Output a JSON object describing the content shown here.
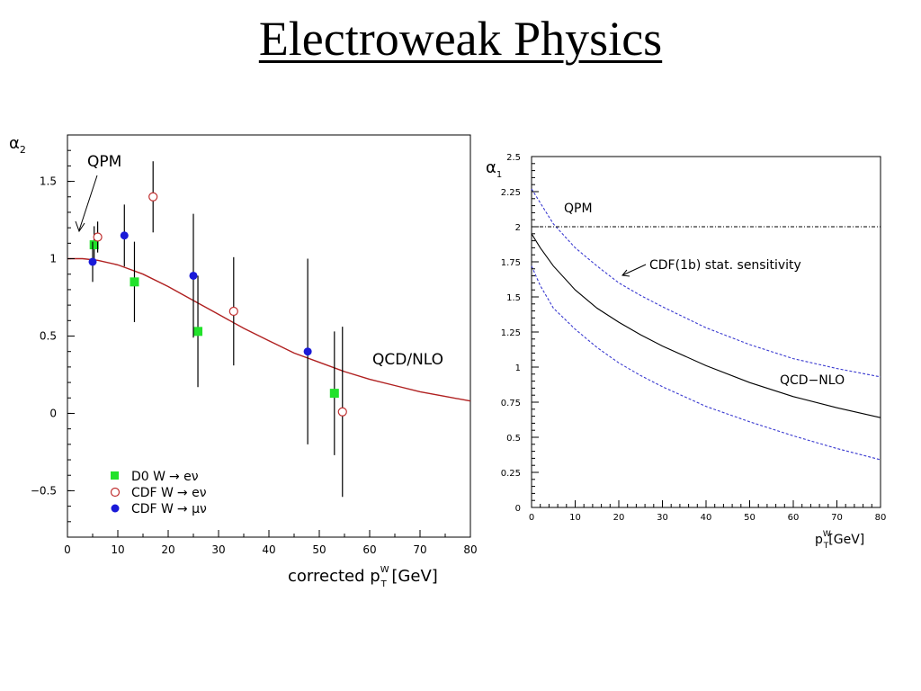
{
  "slide": {
    "title": "Electroweak Physics"
  },
  "colors": {
    "d0": "#22e22b",
    "cdf_e": "#c03030",
    "cdf_mu": "#1a1ad8",
    "qcd_left": "#b02020",
    "qcd_right": "#000000",
    "sensitivity": "#3a3ad0",
    "qpm": "#000000"
  },
  "chart_data": [
    {
      "type": "scatter",
      "title": "",
      "xlabel": "corrected p",
      "xlabel_sup": "W",
      "xlabel_sub": "T",
      "xlabel_unit": " [GeV]",
      "ylabel": "α",
      "ylabel_sub": "2",
      "xlim": [
        0,
        80
      ],
      "ylim": [
        -0.8,
        1.8
      ],
      "xticks": [
        0,
        10,
        20,
        30,
        40,
        50,
        60,
        70,
        80
      ],
      "yticks": [
        -0.5,
        0,
        0.5,
        1,
        1.5
      ],
      "ytick_labels": [
        "−0.5",
        "0",
        "0.5",
        "1",
        "1.5"
      ],
      "annotations": {
        "qpm": "QPM",
        "qcd": "QCD/NLO"
      },
      "series": [
        {
          "name": "D0  W",
          "marker": "square",
          "points": [
            {
              "x": 5.3,
              "y": 1.09,
              "err": 0.12
            },
            {
              "x": 13.3,
              "y": 0.85,
              "err": 0.26
            },
            {
              "x": 25.9,
              "y": 0.53,
              "err": 0.36
            },
            {
              "x": 53.0,
              "y": 0.13,
              "err": 0.4
            }
          ]
        },
        {
          "name": "CDF W",
          "marker": "open-circle",
          "points": [
            {
              "x": 6.0,
              "y": 1.14,
              "err": 0.1
            },
            {
              "x": 17.0,
              "y": 1.4,
              "err": 0.23
            },
            {
              "x": 33.0,
              "y": 0.66,
              "err": 0.35
            },
            {
              "x": 54.6,
              "y": 0.01,
              "err": 0.55
            }
          ]
        },
        {
          "name": "CDF W",
          "marker": "filled-circle",
          "points": [
            {
              "x": 5.0,
              "y": 0.98,
              "err": 0.13
            },
            {
              "x": 11.3,
              "y": 1.15,
              "err": 0.2
            },
            {
              "x": 25.0,
              "y": 0.89,
              "err": 0.4
            },
            {
              "x": 47.7,
              "y": 0.4,
              "err": 0.6
            }
          ]
        }
      ],
      "legend": [
        {
          "label": "D0  W",
          "process": "→ eν"
        },
        {
          "label": "CDF W",
          "process": "→ eν"
        },
        {
          "label": "CDF W",
          "process": "→ μν"
        }
      ],
      "curve_qcd_nlo": {
        "x": [
          0,
          3,
          6,
          10,
          15,
          20,
          25,
          30,
          35,
          40,
          45,
          50,
          55,
          60,
          65,
          70,
          75,
          80
        ],
        "y": [
          1.0,
          1.0,
          0.99,
          0.96,
          0.9,
          0.82,
          0.73,
          0.64,
          0.55,
          0.47,
          0.39,
          0.33,
          0.27,
          0.22,
          0.18,
          0.14,
          0.11,
          0.08
        ]
      }
    },
    {
      "type": "line",
      "title": "",
      "xlabel": "p",
      "xlabel_sup": "W",
      "xlabel_sub": "T",
      "xlabel_unit": "[GeV]",
      "ylabel": "α",
      "ylabel_sub": "1",
      "xlim": [
        0,
        80
      ],
      "ylim": [
        0,
        2.5
      ],
      "xticks": [
        0,
        10,
        20,
        30,
        40,
        50,
        60,
        70,
        80
      ],
      "yticks": [
        0,
        0.25,
        0.5,
        0.75,
        1,
        1.25,
        1.5,
        1.75,
        2,
        2.25,
        2.5
      ],
      "ytick_labels": [
        "0",
        "0.25",
        "0.5",
        "0.75",
        "1",
        "1.25",
        "1.5",
        "1.75",
        "2",
        "2.25",
        "2.5"
      ],
      "annotations": {
        "qpm": "QPM",
        "sensitivity": "CDF(1b) stat. sensitivity",
        "qcd": "QCD−NLO"
      },
      "series": [
        {
          "style": "solid",
          "x": [
            0,
            2,
            5,
            10,
            15,
            20,
            25,
            30,
            40,
            50,
            60,
            70,
            80
          ],
          "y": [
            1.95,
            1.85,
            1.72,
            1.55,
            1.42,
            1.32,
            1.23,
            1.15,
            1.01,
            0.89,
            0.79,
            0.71,
            0.64
          ]
        },
        {
          "style": "dotted",
          "x": [
            0,
            2,
            5,
            10,
            15,
            20,
            25,
            30,
            40,
            50,
            60,
            70,
            80
          ],
          "y": [
            2.27,
            2.17,
            2.02,
            1.85,
            1.72,
            1.6,
            1.51,
            1.43,
            1.28,
            1.16,
            1.06,
            0.99,
            0.93
          ]
        },
        {
          "style": "dotted",
          "x": [
            0,
            2,
            5,
            10,
            15,
            20,
            25,
            30,
            40,
            50,
            60,
            70,
            80
          ],
          "y": [
            1.72,
            1.58,
            1.42,
            1.27,
            1.14,
            1.03,
            0.94,
            0.86,
            0.72,
            0.61,
            0.51,
            0.42,
            0.34
          ]
        },
        {
          "style": "dash-dot",
          "x": [
            0,
            80
          ],
          "y": [
            2.0,
            2.0
          ]
        }
      ]
    }
  ]
}
